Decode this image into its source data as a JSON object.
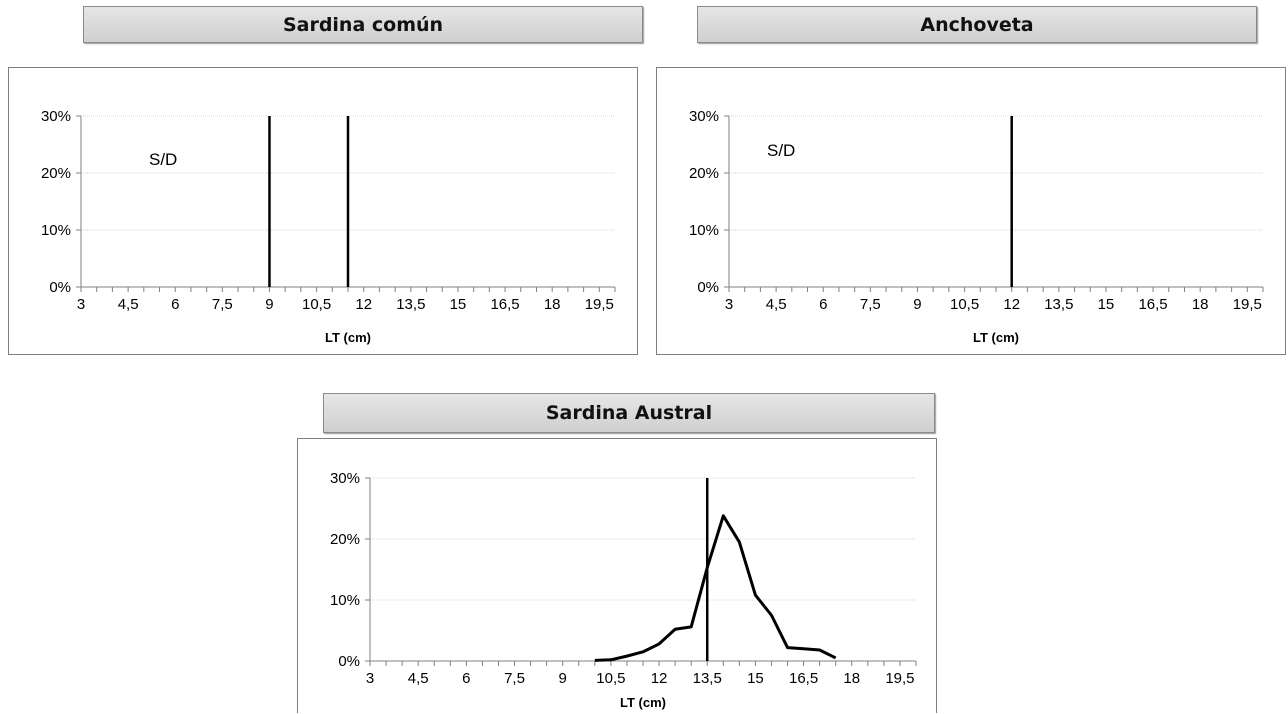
{
  "chart_data": [
    {
      "type": "line",
      "title": "Sardina común",
      "xlabel": "LT (cm)",
      "ylabel": "",
      "annotation": "S/D",
      "x_tick_labels": [
        "3",
        "4,5",
        "6",
        "7,5",
        "9",
        "10,5",
        "12",
        "13,5",
        "15",
        "16,5",
        "18",
        "19,5"
      ],
      "y_tick_labels": [
        "0%",
        "10%",
        "20%",
        "30%"
      ],
      "xlim": [
        3,
        20
      ],
      "ylim": [
        0,
        30
      ],
      "x_minor_step": 0.5,
      "grid": "horizontal",
      "series": [],
      "vlines": [
        9,
        11.5
      ]
    },
    {
      "type": "line",
      "title": "Anchoveta",
      "xlabel": "LT (cm)",
      "ylabel": "",
      "annotation": "S/D",
      "x_tick_labels": [
        "3",
        "4,5",
        "6",
        "7,5",
        "9",
        "10,5",
        "12",
        "13,5",
        "15",
        "16,5",
        "18",
        "19,5"
      ],
      "y_tick_labels": [
        "0%",
        "10%",
        "20%",
        "30%"
      ],
      "xlim": [
        3,
        20
      ],
      "ylim": [
        0,
        30
      ],
      "x_minor_step": 0.5,
      "grid": "horizontal",
      "series": [],
      "vlines": [
        12
      ]
    },
    {
      "type": "line",
      "title": "Sardina Austral",
      "xlabel": "LT (cm)",
      "ylabel": "",
      "annotation": "",
      "x_tick_labels": [
        "3",
        "4,5",
        "6",
        "7,5",
        "9",
        "10,5",
        "12",
        "13,5",
        "15",
        "16,5",
        "18",
        "19,5"
      ],
      "y_tick_labels": [
        "0%",
        "10%",
        "20%",
        "30%"
      ],
      "xlim": [
        3,
        20
      ],
      "ylim": [
        0,
        30
      ],
      "x_minor_step": 0.5,
      "grid": "horizontal",
      "series": [
        {
          "x": [
            10,
            10.5,
            11,
            11.5,
            12,
            12.5,
            13,
            13.5,
            14,
            14.5,
            15,
            15.5,
            16,
            16.5,
            17,
            17.5
          ],
          "values": [
            0.1,
            0.2,
            0.8,
            1.5,
            2.8,
            5.2,
            5.6,
            15.3,
            23.8,
            19.5,
            10.8,
            7.5,
            2.2,
            2.0,
            1.8,
            0.5
          ]
        }
      ],
      "vlines": [
        13.5
      ]
    }
  ]
}
